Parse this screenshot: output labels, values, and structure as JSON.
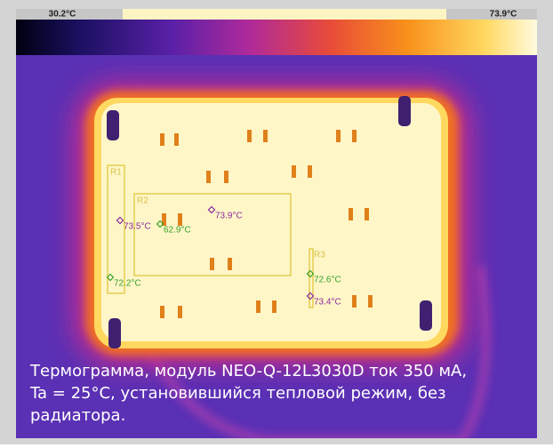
{
  "scale": {
    "min": "30.2°C",
    "max": "73.9°C"
  },
  "regions": [
    "R1",
    "R2",
    "R3"
  ],
  "markers": [
    {
      "label": "73.5°C",
      "color": "#8a2a9c"
    },
    {
      "label": "62.9°C",
      "color": "#3aa02a"
    },
    {
      "label": "73.9°C",
      "color": "#8a2a9c"
    },
    {
      "label": "72.2°C",
      "color": "#3aa02a"
    },
    {
      "label": "72.6°C",
      "color": "#3aa02a"
    },
    {
      "label": "73.4°C",
      "color": "#8a2a9c"
    }
  ],
  "caption": [
    "Термограмма, модуль NEO-Q-12L3030D ток 350 мА,",
    "Ta = 25°C, установившийся тепловой режим, без",
    "радиатора."
  ]
}
